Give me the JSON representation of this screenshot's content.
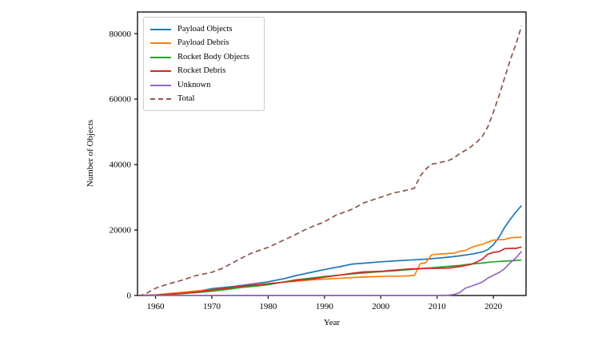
{
  "figure": {
    "background": "#ffffff",
    "plot_border_color": "#000000"
  },
  "chart_data": {
    "type": "line",
    "title": "",
    "xlabel": "Year",
    "ylabel": "Number of Objects",
    "xlim": [
      1956.8,
      2025.8
    ],
    "ylim": [
      0,
      86600
    ],
    "x_ticks": [
      1960,
      1970,
      1980,
      1990,
      2000,
      2010,
      2020
    ],
    "y_ticks": [
      0,
      20000,
      40000,
      60000,
      80000
    ],
    "grid": false,
    "legend_position": "upper left",
    "series": [
      {
        "name": "Payload Objects",
        "color": "#1f77b4",
        "style": "solid",
        "points": [
          [
            1957,
            0
          ],
          [
            1960,
            150
          ],
          [
            1963,
            500
          ],
          [
            1965,
            900
          ],
          [
            1968,
            1500
          ],
          [
            1970,
            2100
          ],
          [
            1973,
            2600
          ],
          [
            1975,
            3000
          ],
          [
            1978,
            3700
          ],
          [
            1980,
            4200
          ],
          [
            1983,
            5200
          ],
          [
            1985,
            6100
          ],
          [
            1988,
            7200
          ],
          [
            1990,
            7900
          ],
          [
            1993,
            8900
          ],
          [
            1995,
            9600
          ],
          [
            1998,
            10000
          ],
          [
            2000,
            10300
          ],
          [
            2003,
            10600
          ],
          [
            2005,
            10800
          ],
          [
            2008,
            11100
          ],
          [
            2010,
            11400
          ],
          [
            2012,
            11700
          ],
          [
            2014,
            12100
          ],
          [
            2016,
            12600
          ],
          [
            2017,
            12900
          ],
          [
            2018,
            13300
          ],
          [
            2019,
            14000
          ],
          [
            2020,
            15500
          ],
          [
            2021,
            17800
          ],
          [
            2022,
            20800
          ],
          [
            2023,
            23300
          ],
          [
            2024,
            25500
          ],
          [
            2025,
            27500
          ]
        ]
      },
      {
        "name": "Payload Debris",
        "color": "#ff7f0e",
        "style": "solid",
        "points": [
          [
            1957,
            0
          ],
          [
            1960,
            200
          ],
          [
            1963,
            700
          ],
          [
            1965,
            1000
          ],
          [
            1968,
            1500
          ],
          [
            1970,
            1800
          ],
          [
            1973,
            2300
          ],
          [
            1975,
            2600
          ],
          [
            1977,
            3100
          ],
          [
            1980,
            3600
          ],
          [
            1983,
            4100
          ],
          [
            1985,
            4400
          ],
          [
            1988,
            4800
          ],
          [
            1990,
            5000
          ],
          [
            1993,
            5300
          ],
          [
            1995,
            5500
          ],
          [
            1998,
            5700
          ],
          [
            2000,
            5800
          ],
          [
            2003,
            5900
          ],
          [
            2005,
            6000
          ],
          [
            2006,
            6200
          ],
          [
            2007,
            9700
          ],
          [
            2008,
            10000
          ],
          [
            2009,
            12400
          ],
          [
            2010,
            12600
          ],
          [
            2012,
            12800
          ],
          [
            2013,
            12900
          ],
          [
            2014,
            13500
          ],
          [
            2015,
            13700
          ],
          [
            2016,
            14600
          ],
          [
            2017,
            15200
          ],
          [
            2018,
            15600
          ],
          [
            2019,
            16300
          ],
          [
            2020,
            16900
          ],
          [
            2021,
            17000
          ],
          [
            2022,
            17100
          ],
          [
            2023,
            17600
          ],
          [
            2024,
            17700
          ],
          [
            2025,
            17800
          ]
        ]
      },
      {
        "name": "Rocket Body Objects",
        "color": "#2ca02c",
        "style": "solid",
        "points": [
          [
            1957,
            0
          ],
          [
            1960,
            100
          ],
          [
            1963,
            400
          ],
          [
            1965,
            600
          ],
          [
            1968,
            1000
          ],
          [
            1970,
            1300
          ],
          [
            1973,
            1900
          ],
          [
            1975,
            2400
          ],
          [
            1978,
            2900
          ],
          [
            1980,
            3300
          ],
          [
            1983,
            4200
          ],
          [
            1985,
            4800
          ],
          [
            1988,
            5400
          ],
          [
            1990,
            5800
          ],
          [
            1993,
            6300
          ],
          [
            1995,
            6600
          ],
          [
            1998,
            7000
          ],
          [
            2000,
            7300
          ],
          [
            2003,
            7600
          ],
          [
            2005,
            7900
          ],
          [
            2008,
            8300
          ],
          [
            2010,
            8600
          ],
          [
            2012,
            8900
          ],
          [
            2014,
            9200
          ],
          [
            2016,
            9600
          ],
          [
            2018,
            9900
          ],
          [
            2020,
            10300
          ],
          [
            2022,
            10500
          ],
          [
            2024,
            10700
          ],
          [
            2025,
            10800
          ]
        ]
      },
      {
        "name": "Rocket Debris",
        "color": "#d62728",
        "style": "solid",
        "points": [
          [
            1957,
            0
          ],
          [
            1960,
            120
          ],
          [
            1963,
            450
          ],
          [
            1965,
            700
          ],
          [
            1968,
            1200
          ],
          [
            1970,
            1700
          ],
          [
            1973,
            2300
          ],
          [
            1975,
            2800
          ],
          [
            1978,
            3200
          ],
          [
            1980,
            3600
          ],
          [
            1983,
            4100
          ],
          [
            1985,
            4600
          ],
          [
            1988,
            5100
          ],
          [
            1990,
            5600
          ],
          [
            1993,
            6300
          ],
          [
            1995,
            6800
          ],
          [
            1997,
            7200
          ],
          [
            2000,
            7400
          ],
          [
            2003,
            7800
          ],
          [
            2005,
            8100
          ],
          [
            2008,
            8300
          ],
          [
            2010,
            8300
          ],
          [
            2012,
            8400
          ],
          [
            2014,
            8800
          ],
          [
            2016,
            9500
          ],
          [
            2017,
            10200
          ],
          [
            2018,
            11100
          ],
          [
            2019,
            12600
          ],
          [
            2020,
            13200
          ],
          [
            2021,
            13400
          ],
          [
            2022,
            14300
          ],
          [
            2023,
            14400
          ],
          [
            2024,
            14400
          ],
          [
            2025,
            14800
          ]
        ]
      },
      {
        "name": "Unknown",
        "color": "#9467bd",
        "style": "solid",
        "points": [
          [
            1957,
            0
          ],
          [
            2010,
            0
          ],
          [
            2012,
            100
          ],
          [
            2013,
            300
          ],
          [
            2014,
            900
          ],
          [
            2015,
            2200
          ],
          [
            2016,
            2800
          ],
          [
            2017,
            3400
          ],
          [
            2018,
            4100
          ],
          [
            2019,
            5300
          ],
          [
            2020,
            6200
          ],
          [
            2021,
            7000
          ],
          [
            2022,
            8200
          ],
          [
            2023,
            10000
          ],
          [
            2024,
            11500
          ],
          [
            2025,
            13500
          ]
        ]
      },
      {
        "name": "Total",
        "color": "#8c564b",
        "style": "dashed",
        "points": [
          [
            1957,
            0
          ],
          [
            1958,
            300
          ],
          [
            1960,
            2200
          ],
          [
            1962,
            3400
          ],
          [
            1965,
            4800
          ],
          [
            1967,
            6000
          ],
          [
            1970,
            7100
          ],
          [
            1972,
            8400
          ],
          [
            1975,
            11200
          ],
          [
            1977,
            12900
          ],
          [
            1980,
            14700
          ],
          [
            1982,
            16300
          ],
          [
            1985,
            18700
          ],
          [
            1987,
            20500
          ],
          [
            1990,
            22500
          ],
          [
            1992,
            24500
          ],
          [
            1995,
            26400
          ],
          [
            1997,
            28300
          ],
          [
            2000,
            30000
          ],
          [
            2002,
            31200
          ],
          [
            2005,
            32300
          ],
          [
            2006,
            32800
          ],
          [
            2007,
            36500
          ],
          [
            2008,
            38600
          ],
          [
            2009,
            40100
          ],
          [
            2010,
            40400
          ],
          [
            2011,
            40800
          ],
          [
            2012,
            41200
          ],
          [
            2013,
            42000
          ],
          [
            2014,
            43300
          ],
          [
            2015,
            44300
          ],
          [
            2016,
            45400
          ],
          [
            2017,
            46800
          ],
          [
            2018,
            48500
          ],
          [
            2019,
            51500
          ],
          [
            2020,
            56000
          ],
          [
            2021,
            61000
          ],
          [
            2022,
            66500
          ],
          [
            2023,
            72000
          ],
          [
            2024,
            76800
          ],
          [
            2025,
            82300
          ]
        ]
      }
    ]
  }
}
